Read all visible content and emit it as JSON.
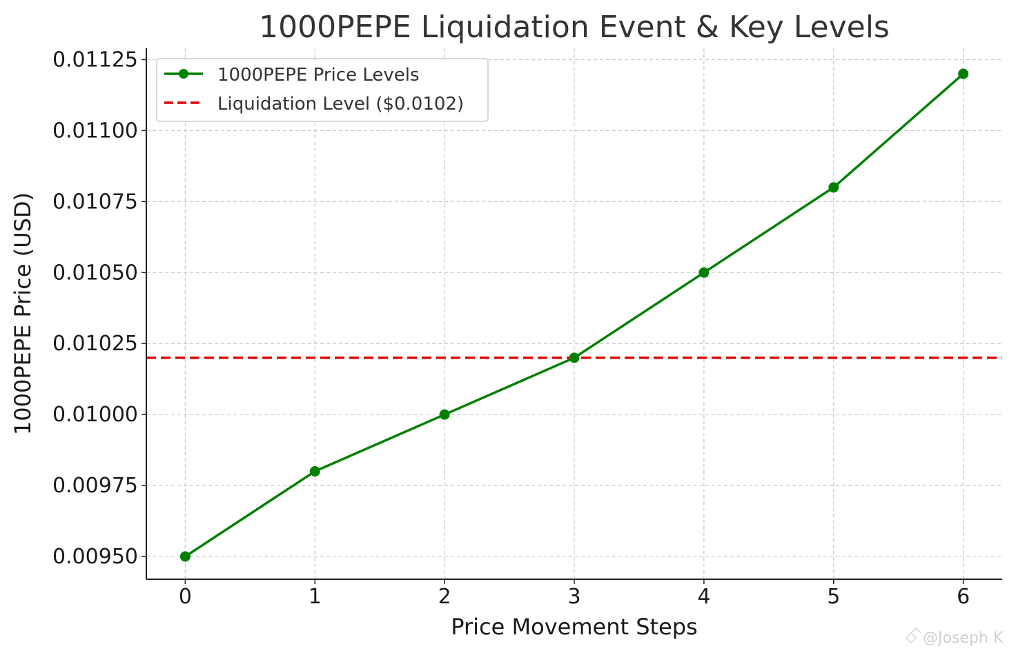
{
  "chart_data": {
    "type": "line",
    "title": "1000PEPE Liquidation Event & Key Levels",
    "xlabel": "Price Movement Steps",
    "ylabel": "1000PEPE Price (USD)",
    "x": [
      0,
      1,
      2,
      3,
      4,
      5,
      6
    ],
    "x_tick_labels": [
      "0",
      "1",
      "2",
      "3",
      "4",
      "5",
      "6"
    ],
    "y_tick_values": [
      0.0095,
      0.00975,
      0.01,
      0.01025,
      0.0105,
      0.01075,
      0.011,
      0.01125
    ],
    "y_tick_labels": [
      "0.00950",
      "0.00975",
      "0.01000",
      "0.01025",
      "0.01050",
      "0.01075",
      "0.01100",
      "0.01125"
    ],
    "xlim": [
      -0.3,
      6.3
    ],
    "ylim": [
      0.00942,
      0.01129
    ],
    "grid": true,
    "legend_position": "top-left",
    "series": [
      {
        "name": "1000PEPE Price Levels",
        "style": "solid-marker",
        "color": "#008000",
        "values": [
          0.0095,
          0.0098,
          0.01,
          0.0102,
          0.0105,
          0.0108,
          0.0112
        ]
      }
    ],
    "reference_lines": [
      {
        "name": "Liquidation Level ($0.0102)",
        "style": "dashed",
        "color": "#e00000",
        "y": 0.0102
      }
    ]
  },
  "watermark": "@Joseph K"
}
